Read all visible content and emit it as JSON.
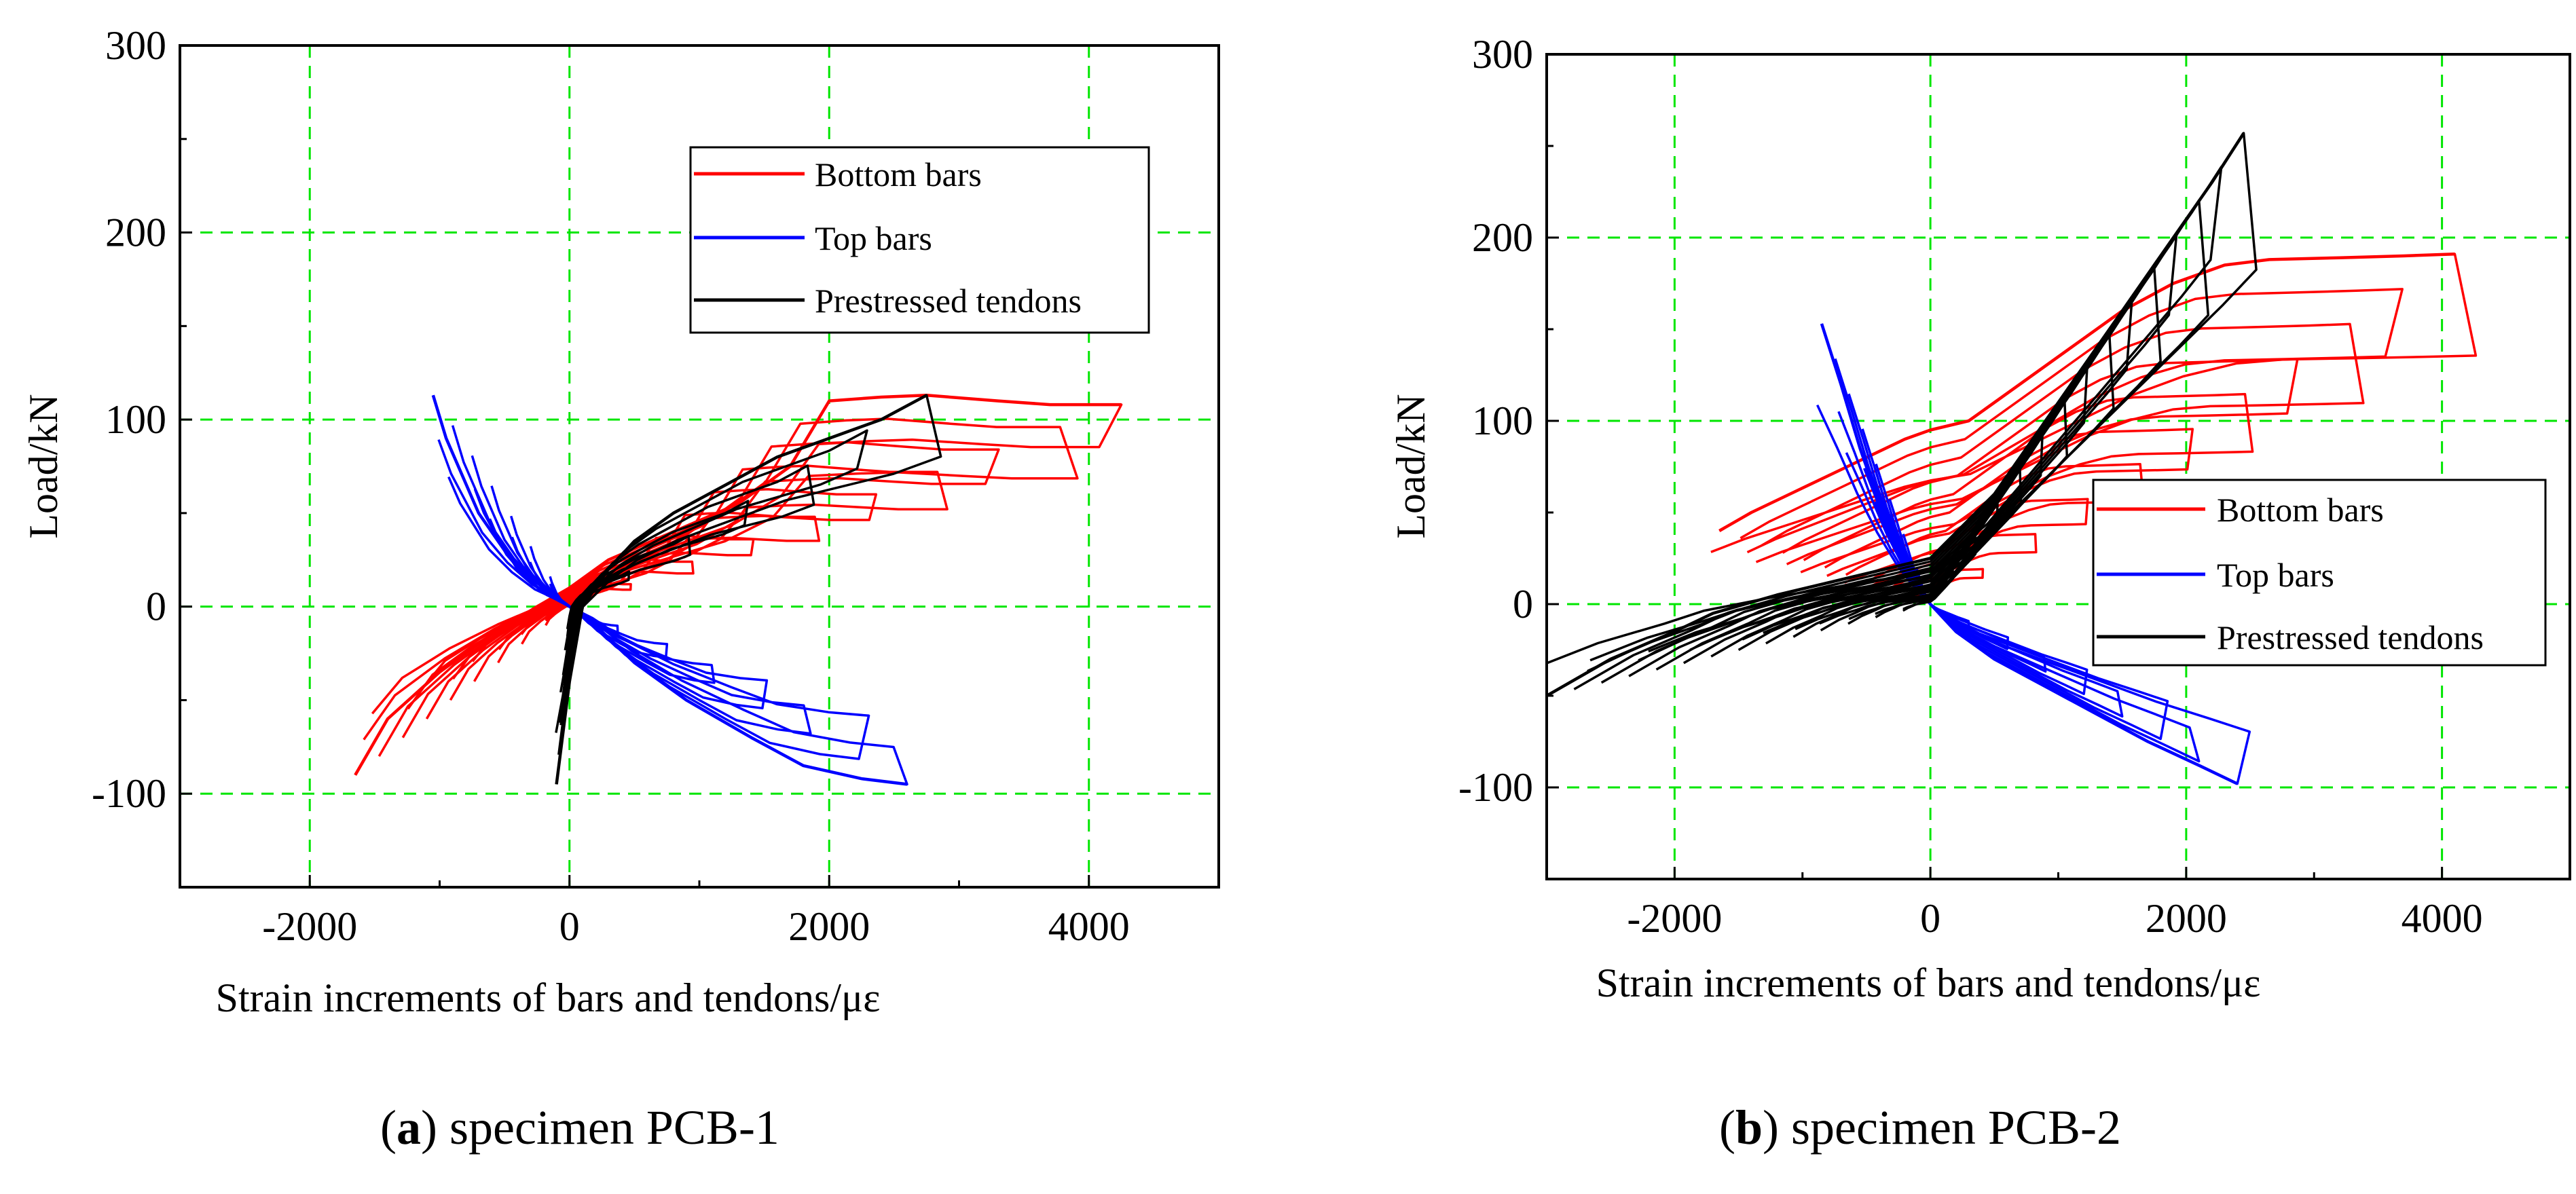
{
  "chart_data": [
    {
      "type": "line",
      "caption": {
        "letter": "a",
        "text": "specimen PCB-1"
      },
      "xlabel": "Strain increments of bars and tendons/με",
      "ylabel": "Load/kN",
      "xlim": [
        -3000,
        5000
      ],
      "ylim": [
        -150,
        300
      ],
      "xticks": [
        -2000,
        0,
        2000,
        4000
      ],
      "yticks": [
        -100,
        0,
        100,
        200,
        300
      ],
      "grid": true,
      "legend_position": "top-right",
      "series": [
        {
          "name": "Bottom bars",
          "color": "#ff0000",
          "style": "hysteresis",
          "cycles": 9,
          "x": [
            -1650,
            -1400,
            -1000,
            -600,
            -250,
            0,
            300,
            800,
            1300,
            1700,
            2000,
            2400,
            2750,
            3300,
            3700,
            4250
          ],
          "y": [
            -90,
            -60,
            -35,
            -15,
            0,
            10,
            25,
            40,
            55,
            75,
            110,
            112,
            113,
            110,
            108,
            108
          ]
        },
        {
          "name": "Top bars",
          "color": "#0000ff",
          "style": "hysteresis",
          "cycles": 7,
          "x": [
            -1050,
            -950,
            -700,
            -500,
            -300,
            -150,
            0,
            200,
            500,
            900,
            1400,
            1800,
            2250,
            2600
          ],
          "y": [
            113,
            90,
            50,
            30,
            15,
            8,
            0,
            -10,
            -30,
            -50,
            -70,
            -85,
            -92,
            -95
          ]
        },
        {
          "name": "Prestressed tendons",
          "color": "#000000",
          "style": "hysteresis",
          "cycles": 6,
          "x": [
            -100,
            0,
            100,
            300,
            500,
            800,
            1200,
            1600,
            2000,
            2400,
            2750
          ],
          "y": [
            -95,
            -40,
            0,
            20,
            35,
            50,
            65,
            80,
            90,
            100,
            113
          ]
        }
      ]
    },
    {
      "type": "line",
      "caption": {
        "letter": "b",
        "text": "specimen PCB-2"
      },
      "xlabel": "Strain increments of bars and tendons/με",
      "ylabel": "Load/kN",
      "xlim": [
        -3000,
        5000
      ],
      "ylim": [
        -150,
        300
      ],
      "xticks": [
        -2000,
        0,
        2000,
        4000
      ],
      "yticks": [
        -100,
        0,
        100,
        200,
        300
      ],
      "grid": true,
      "legend_position": "center-right",
      "series": [
        {
          "name": "Bottom bars",
          "color": "#ff0000",
          "style": "hysteresis",
          "cycles": 10,
          "x": [
            -1650,
            -1400,
            -1100,
            -800,
            -500,
            -200,
            0,
            300,
            700,
            1100,
            1500,
            1900,
            2300,
            2650,
            3200,
            3700,
            4100
          ],
          "y": [
            40,
            50,
            60,
            70,
            80,
            90,
            95,
            100,
            120,
            140,
            160,
            175,
            185,
            188,
            189,
            190,
            191
          ]
        },
        {
          "name": "Top bars",
          "color": "#0000ff",
          "style": "hysteresis",
          "cycles": 8,
          "x": [
            -850,
            -700,
            -550,
            -400,
            -250,
            -100,
            0,
            200,
            500,
            900,
            1300,
            1700,
            2100,
            2400
          ],
          "y": [
            153,
            120,
            85,
            55,
            30,
            10,
            0,
            -15,
            -30,
            -45,
            -60,
            -75,
            -88,
            -98
          ]
        },
        {
          "name": "Prestressed tendons",
          "color": "#000000",
          "style": "hysteresis",
          "cycles": 14,
          "x": [
            -3000,
            -2500,
            -2000,
            -1700,
            -1200,
            -600,
            0,
            500,
            1000,
            1500,
            1900,
            2200,
            2450
          ],
          "y": [
            -50,
            -30,
            -15,
            -5,
            5,
            15,
            25,
            60,
            110,
            160,
            200,
            230,
            257
          ]
        }
      ]
    }
  ]
}
